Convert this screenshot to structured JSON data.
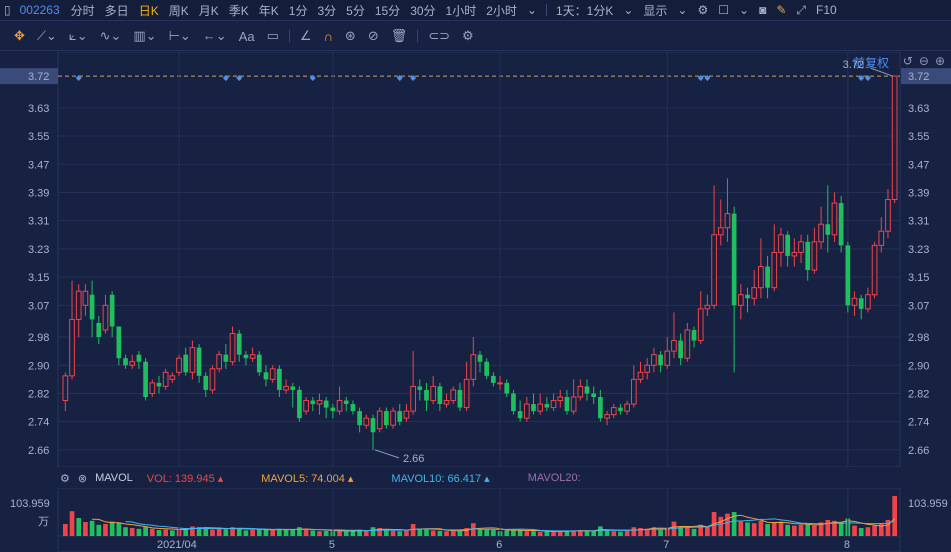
{
  "topbar": {
    "stock_code": "002263",
    "tabs": [
      {
        "label": "分时",
        "active": false
      },
      {
        "label": "多日",
        "active": false
      },
      {
        "label": "日K",
        "active": true
      },
      {
        "label": "周K",
        "active": false
      },
      {
        "label": "月K",
        "active": false
      },
      {
        "label": "季K",
        "active": false
      },
      {
        "label": "年K",
        "active": false
      },
      {
        "label": "1分",
        "active": false
      },
      {
        "label": "3分",
        "active": false
      },
      {
        "label": "5分",
        "active": false
      },
      {
        "label": "15分",
        "active": false
      },
      {
        "label": "30分",
        "active": false
      },
      {
        "label": "1小时",
        "active": false
      },
      {
        "label": "2小时",
        "active": false
      }
    ],
    "period_select": "1天：1分K",
    "display_label": "显示",
    "f10": "F10"
  },
  "chart": {
    "adjust_label": "前复权",
    "current_price": "3.72",
    "high_label": "3.72",
    "low_label": "2.66",
    "price_ticks": [
      "3.72",
      "3.63",
      "3.55",
      "3.47",
      "3.39",
      "3.31",
      "3.23",
      "3.15",
      "3.07",
      "2.98",
      "2.90",
      "2.82",
      "2.74",
      "2.66"
    ],
    "month_labels": [
      "2021/04",
      "5",
      "6",
      "7",
      "8"
    ]
  },
  "indicators": {
    "name": "MAVOL",
    "vol": "VOL: 139.945",
    "ma5": "MAVOL5: 74.004",
    "ma10": "MAVOL10: 66.417",
    "ma20": "MAVOL20:",
    "vol_max": "103.959",
    "unit": "万"
  },
  "colors": {
    "up": "#f0444a",
    "down": "#1fbf5f",
    "accent": "#f2b21b",
    "link": "#4e8ff0"
  },
  "chart_data": {
    "type": "candlestick",
    "ylim": [
      2.62,
      3.76
    ],
    "candles": [
      [
        2.8,
        2.87,
        2.77,
        2.88
      ],
      [
        2.87,
        3.03,
        2.86,
        3.14
      ],
      [
        3.03,
        3.11,
        2.98,
        3.13
      ],
      [
        3.07,
        3.11,
        3.04,
        3.13
      ],
      [
        3.1,
        3.03,
        2.98,
        3.14
      ],
      [
        3.02,
        2.98,
        2.96,
        3.04
      ],
      [
        3.0,
        3.07,
        2.99,
        3.1
      ],
      [
        3.1,
        3.01,
        2.98,
        3.11
      ],
      [
        3.01,
        2.92,
        2.9,
        3.01
      ],
      [
        2.92,
        2.9,
        2.89,
        2.93
      ],
      [
        2.9,
        2.91,
        2.89,
        2.93
      ],
      [
        2.93,
        2.91,
        2.89,
        2.94
      ],
      [
        2.91,
        2.81,
        2.8,
        2.92
      ],
      [
        2.82,
        2.85,
        2.81,
        2.86
      ],
      [
        2.85,
        2.84,
        2.82,
        2.87
      ],
      [
        2.84,
        2.88,
        2.83,
        2.89
      ],
      [
        2.86,
        2.87,
        2.85,
        2.88
      ],
      [
        2.88,
        2.92,
        2.87,
        2.93
      ],
      [
        2.93,
        2.88,
        2.87,
        2.95
      ],
      [
        2.88,
        2.95,
        2.86,
        2.97
      ],
      [
        2.95,
        2.87,
        2.85,
        2.96
      ],
      [
        2.87,
        2.83,
        2.81,
        2.88
      ],
      [
        2.83,
        2.89,
        2.82,
        2.9
      ],
      [
        2.89,
        2.93,
        2.88,
        2.94
      ],
      [
        2.93,
        2.91,
        2.89,
        2.96
      ],
      [
        2.91,
        2.99,
        2.9,
        3.01
      ],
      [
        2.99,
        2.93,
        2.91,
        3.0
      ],
      [
        2.93,
        2.92,
        2.9,
        2.94
      ],
      [
        2.92,
        2.93,
        2.91,
        2.95
      ],
      [
        2.93,
        2.88,
        2.87,
        2.94
      ],
      [
        2.88,
        2.86,
        2.84,
        2.9
      ],
      [
        2.86,
        2.89,
        2.85,
        2.9
      ],
      [
        2.89,
        2.83,
        2.81,
        2.9
      ],
      [
        2.83,
        2.84,
        2.82,
        2.86
      ],
      [
        2.84,
        2.83,
        2.78,
        2.85
      ],
      [
        2.83,
        2.75,
        2.74,
        2.84
      ],
      [
        2.77,
        2.8,
        2.76,
        2.81
      ],
      [
        2.8,
        2.79,
        2.77,
        2.81
      ],
      [
        2.79,
        2.8,
        2.76,
        2.82
      ],
      [
        2.8,
        2.78,
        2.75,
        2.81
      ],
      [
        2.78,
        2.77,
        2.75,
        2.79
      ],
      [
        2.77,
        2.8,
        2.76,
        2.84
      ],
      [
        2.8,
        2.79,
        2.77,
        2.81
      ],
      [
        2.79,
        2.77,
        2.76,
        2.8
      ],
      [
        2.77,
        2.73,
        2.71,
        2.78
      ],
      [
        2.73,
        2.75,
        2.72,
        2.76
      ],
      [
        2.75,
        2.71,
        2.66,
        2.76
      ],
      [
        2.72,
        2.77,
        2.71,
        2.78
      ],
      [
        2.77,
        2.73,
        2.72,
        2.78
      ],
      [
        2.73,
        2.77,
        2.72,
        2.78
      ],
      [
        2.77,
        2.74,
        2.73,
        2.79
      ],
      [
        2.75,
        2.77,
        2.74,
        2.79
      ],
      [
        2.77,
        2.84,
        2.76,
        2.94
      ],
      [
        2.84,
        2.83,
        2.8,
        2.86
      ],
      [
        2.83,
        2.8,
        2.77,
        2.85
      ],
      [
        2.8,
        2.84,
        2.79,
        2.87
      ],
      [
        2.84,
        2.79,
        2.77,
        2.85
      ],
      [
        2.79,
        2.8,
        2.78,
        2.82
      ],
      [
        2.8,
        2.83,
        2.79,
        2.84
      ],
      [
        2.83,
        2.78,
        2.77,
        2.85
      ],
      [
        2.78,
        2.86,
        2.77,
        2.91
      ],
      [
        2.86,
        2.93,
        2.84,
        2.98
      ],
      [
        2.93,
        2.91,
        2.88,
        2.94
      ],
      [
        2.91,
        2.87,
        2.86,
        2.92
      ],
      [
        2.87,
        2.85,
        2.84,
        2.88
      ],
      [
        2.85,
        2.85,
        2.83,
        2.87
      ],
      [
        2.85,
        2.82,
        2.81,
        2.86
      ],
      [
        2.82,
        2.77,
        2.76,
        2.83
      ],
      [
        2.77,
        2.75,
        2.74,
        2.8
      ],
      [
        2.75,
        2.79,
        2.74,
        2.81
      ],
      [
        2.79,
        2.77,
        2.76,
        2.82
      ],
      [
        2.77,
        2.79,
        2.76,
        2.82
      ],
      [
        2.79,
        2.78,
        2.77,
        2.81
      ],
      [
        2.78,
        2.8,
        2.77,
        2.82
      ],
      [
        2.8,
        2.81,
        2.78,
        2.83
      ],
      [
        2.81,
        2.77,
        2.76,
        2.83
      ],
      [
        2.77,
        2.81,
        2.76,
        2.86
      ],
      [
        2.81,
        2.84,
        2.8,
        2.86
      ],
      [
        2.84,
        2.82,
        2.8,
        2.86
      ],
      [
        2.82,
        2.81,
        2.79,
        2.84
      ],
      [
        2.81,
        2.75,
        2.74,
        2.83
      ],
      [
        2.75,
        2.76,
        2.73,
        2.77
      ],
      [
        2.76,
        2.78,
        2.75,
        2.79
      ],
      [
        2.78,
        2.77,
        2.76,
        2.79
      ],
      [
        2.77,
        2.79,
        2.76,
        2.8
      ],
      [
        2.79,
        2.86,
        2.78,
        2.9
      ],
      [
        2.86,
        2.88,
        2.85,
        2.91
      ],
      [
        2.88,
        2.9,
        2.86,
        2.92
      ],
      [
        2.9,
        2.93,
        2.88,
        2.95
      ],
      [
        2.93,
        2.9,
        2.88,
        2.94
      ],
      [
        2.9,
        2.94,
        2.89,
        2.98
      ],
      [
        2.94,
        2.97,
        2.92,
        3.05
      ],
      [
        2.97,
        2.92,
        2.9,
        2.99
      ],
      [
        2.92,
        3.0,
        2.91,
        3.02
      ],
      [
        3.0,
        2.97,
        2.95,
        3.01
      ],
      [
        2.97,
        3.06,
        2.96,
        3.11
      ],
      [
        3.06,
        3.07,
        3.04,
        3.1
      ],
      [
        3.07,
        3.27,
        3.06,
        3.41
      ],
      [
        3.27,
        3.29,
        3.24,
        3.37
      ],
      [
        3.29,
        3.33,
        3.25,
        3.43
      ],
      [
        3.33,
        3.07,
        2.88,
        3.35
      ],
      [
        3.07,
        3.1,
        3.03,
        3.13
      ],
      [
        3.1,
        3.09,
        3.05,
        3.12
      ],
      [
        3.09,
        3.12,
        3.07,
        3.17
      ],
      [
        3.12,
        3.18,
        3.09,
        3.26
      ],
      [
        3.18,
        3.12,
        3.09,
        3.21
      ],
      [
        3.12,
        3.22,
        3.11,
        3.3
      ],
      [
        3.22,
        3.27,
        3.18,
        3.29
      ],
      [
        3.27,
        3.21,
        3.18,
        3.28
      ],
      [
        3.21,
        3.22,
        3.18,
        3.26
      ],
      [
        3.22,
        3.25,
        3.19,
        3.27
      ],
      [
        3.25,
        3.17,
        3.14,
        3.27
      ],
      [
        3.17,
        3.25,
        3.16,
        3.29
      ],
      [
        3.25,
        3.3,
        3.23,
        3.35
      ],
      [
        3.3,
        3.27,
        3.22,
        3.41
      ],
      [
        3.27,
        3.36,
        3.25,
        3.39
      ],
      [
        3.36,
        3.24,
        3.22,
        3.38
      ],
      [
        3.24,
        3.07,
        3.05,
        3.25
      ],
      [
        3.07,
        3.09,
        3.04,
        3.11
      ],
      [
        3.09,
        3.06,
        3.03,
        3.1
      ],
      [
        3.06,
        3.1,
        3.05,
        3.12
      ],
      [
        3.1,
        3.24,
        3.09,
        3.25
      ],
      [
        3.24,
        3.28,
        3.22,
        3.32
      ],
      [
        3.28,
        3.37,
        3.26,
        3.4
      ],
      [
        3.37,
        3.72,
        3.36,
        3.72
      ]
    ],
    "volumes": [
      [
        30,
        1
      ],
      [
        62,
        1
      ],
      [
        45,
        0
      ],
      [
        35,
        1
      ],
      [
        38,
        0
      ],
      [
        28,
        0
      ],
      [
        30,
        1
      ],
      [
        36,
        0
      ],
      [
        34,
        0
      ],
      [
        22,
        0
      ],
      [
        20,
        1
      ],
      [
        18,
        0
      ],
      [
        24,
        0
      ],
      [
        18,
        1
      ],
      [
        15,
        0
      ],
      [
        16,
        1
      ],
      [
        14,
        0
      ],
      [
        18,
        1
      ],
      [
        20,
        0
      ],
      [
        24,
        1
      ],
      [
        22,
        0
      ],
      [
        20,
        0
      ],
      [
        16,
        1
      ],
      [
        18,
        1
      ],
      [
        17,
        0
      ],
      [
        22,
        1
      ],
      [
        18,
        0
      ],
      [
        14,
        0
      ],
      [
        15,
        1
      ],
      [
        17,
        0
      ],
      [
        16,
        0
      ],
      [
        14,
        1
      ],
      [
        18,
        0
      ],
      [
        15,
        0
      ],
      [
        16,
        0
      ],
      [
        22,
        0
      ],
      [
        16,
        1
      ],
      [
        14,
        0
      ],
      [
        12,
        1
      ],
      [
        13,
        0
      ],
      [
        12,
        0
      ],
      [
        15,
        1
      ],
      [
        11,
        0
      ],
      [
        12,
        0
      ],
      [
        16,
        0
      ],
      [
        12,
        1
      ],
      [
        22,
        0
      ],
      [
        20,
        1
      ],
      [
        14,
        0
      ],
      [
        13,
        1
      ],
      [
        12,
        0
      ],
      [
        14,
        1
      ],
      [
        30,
        1
      ],
      [
        18,
        0
      ],
      [
        16,
        0
      ],
      [
        14,
        1
      ],
      [
        13,
        0
      ],
      [
        12,
        1
      ],
      [
        12,
        1
      ],
      [
        14,
        0
      ],
      [
        20,
        1
      ],
      [
        32,
        1
      ],
      [
        18,
        0
      ],
      [
        16,
        0
      ],
      [
        15,
        0
      ],
      [
        12,
        0
      ],
      [
        14,
        0
      ],
      [
        16,
        0
      ],
      [
        15,
        0
      ],
      [
        12,
        1
      ],
      [
        12,
        0
      ],
      [
        10,
        1
      ],
      [
        11,
        0
      ],
      [
        12,
        1
      ],
      [
        13,
        1
      ],
      [
        12,
        0
      ],
      [
        14,
        1
      ],
      [
        15,
        1
      ],
      [
        13,
        0
      ],
      [
        12,
        0
      ],
      [
        24,
        0
      ],
      [
        14,
        0
      ],
      [
        12,
        1
      ],
      [
        11,
        0
      ],
      [
        13,
        1
      ],
      [
        22,
        1
      ],
      [
        20,
        1
      ],
      [
        18,
        1
      ],
      [
        22,
        1
      ],
      [
        16,
        0
      ],
      [
        20,
        1
      ],
      [
        36,
        1
      ],
      [
        24,
        0
      ],
      [
        22,
        1
      ],
      [
        18,
        0
      ],
      [
        28,
        1
      ],
      [
        24,
        1
      ],
      [
        60,
        1
      ],
      [
        48,
        1
      ],
      [
        56,
        1
      ],
      [
        60,
        0
      ],
      [
        36,
        1
      ],
      [
        34,
        0
      ],
      [
        32,
        1
      ],
      [
        38,
        1
      ],
      [
        30,
        0
      ],
      [
        34,
        1
      ],
      [
        36,
        1
      ],
      [
        28,
        0
      ],
      [
        26,
        1
      ],
      [
        28,
        1
      ],
      [
        30,
        0
      ],
      [
        26,
        1
      ],
      [
        34,
        1
      ],
      [
        40,
        1
      ],
      [
        38,
        1
      ],
      [
        34,
        0
      ],
      [
        44,
        0
      ],
      [
        26,
        1
      ],
      [
        20,
        0
      ],
      [
        22,
        1
      ],
      [
        26,
        1
      ],
      [
        30,
        1
      ],
      [
        40,
        1
      ],
      [
        100,
        1
      ]
    ]
  }
}
